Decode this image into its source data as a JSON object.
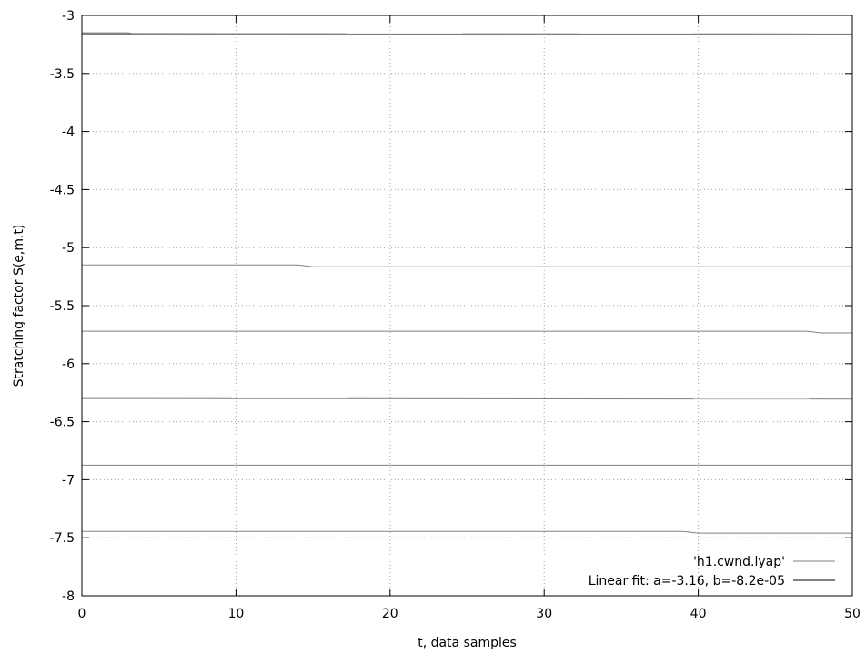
{
  "chart_data": {
    "type": "line",
    "xlabel": "t, data samples",
    "ylabel": "Stratching factor S(e,m.t)",
    "xlim": [
      0,
      50
    ],
    "ylim": [
      -8,
      -3
    ],
    "xticks": [
      0,
      10,
      20,
      30,
      40,
      50
    ],
    "yticks": [
      -3,
      -3.5,
      -4,
      -4.5,
      -5,
      -5.5,
      -6,
      -6.5,
      -7,
      -7.5,
      -8
    ],
    "x_tick_labels": [
      "0",
      "10",
      "20",
      "30",
      "40",
      "50"
    ],
    "y_tick_labels": [
      "-3",
      "-3.5",
      "-4",
      "-4.5",
      "-5",
      "-5.5",
      "-6",
      "-6.5",
      "-7",
      "-7.5",
      "-8"
    ],
    "grid": true,
    "legend_position": "bottom-right",
    "series": [
      {
        "name": "'h1.cwnd.lyap'",
        "color": "#808080",
        "segments": [
          {
            "x": [
              0,
              14,
              15,
              50
            ],
            "y": [
              -5.15,
              -5.15,
              -5.165,
              -5.165
            ]
          },
          {
            "x": [
              0,
              47,
              48,
              50
            ],
            "y": [
              -5.72,
              -5.72,
              -5.735,
              -5.735
            ]
          },
          {
            "x": [
              0,
              50
            ],
            "y": [
              -6.3,
              -6.305
            ]
          },
          {
            "x": [
              0,
              50
            ],
            "y": [
              -6.875,
              -6.875
            ]
          },
          {
            "x": [
              0,
              39,
              40,
              50
            ],
            "y": [
              -7.445,
              -7.445,
              -7.46,
              -7.46
            ]
          },
          {
            "x": [
              0,
              3,
              3.5,
              50
            ],
            "y": [
              -3.15,
              -3.15,
              -3.16,
              -3.16
            ]
          }
        ]
      },
      {
        "name": "Linear fit: a=-3.16, b=-8.2e-05",
        "color": "#808080",
        "segments": [
          {
            "x": [
              0,
              50
            ],
            "y": [
              -3.16,
              -3.164
            ]
          }
        ]
      }
    ]
  }
}
